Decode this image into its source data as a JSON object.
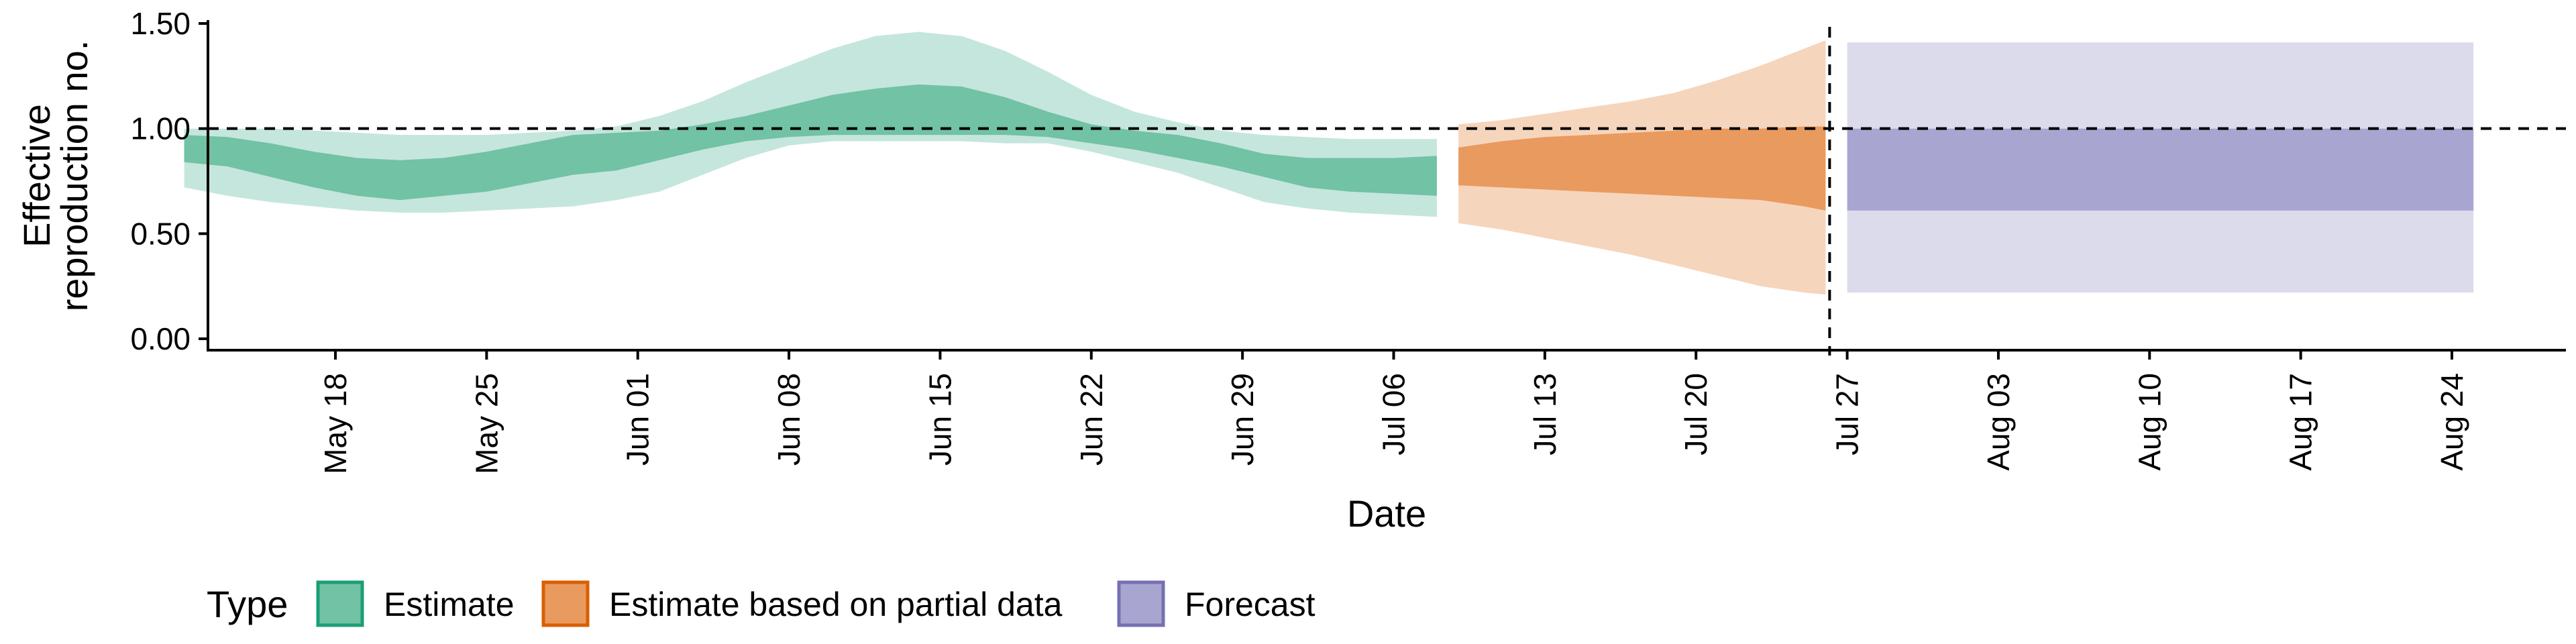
{
  "chart_data": {
    "type": "area",
    "title": "",
    "xlabel": "Date",
    "ylabel_lines": [
      "Effective",
      "reproduction no."
    ],
    "ylim": [
      0.0,
      1.5
    ],
    "y_ticks": [
      "0.00",
      "0.50",
      "1.00",
      "1.50"
    ],
    "y_tick_values": [
      0.0,
      0.5,
      1.0,
      1.5
    ],
    "x_range_days": [
      "2020-05-12",
      "2020-08-31"
    ],
    "x_ticks": [
      {
        "date": "2020-05-18",
        "label": "May 18"
      },
      {
        "date": "2020-05-25",
        "label": "May 25"
      },
      {
        "date": "2020-06-01",
        "label": "Jun 01"
      },
      {
        "date": "2020-06-08",
        "label": "Jun 08"
      },
      {
        "date": "2020-06-15",
        "label": "Jun 15"
      },
      {
        "date": "2020-06-22",
        "label": "Jun 22"
      },
      {
        "date": "2020-06-29",
        "label": "Jun 29"
      },
      {
        "date": "2020-07-06",
        "label": "Jul 06"
      },
      {
        "date": "2020-07-13",
        "label": "Jul 13"
      },
      {
        "date": "2020-07-20",
        "label": "Jul 20"
      },
      {
        "date": "2020-07-27",
        "label": "Jul 27"
      },
      {
        "date": "2020-08-03",
        "label": "Aug 03"
      },
      {
        "date": "2020-08-10",
        "label": "Aug 10"
      },
      {
        "date": "2020-08-17",
        "label": "Aug 17"
      },
      {
        "date": "2020-08-24",
        "label": "Aug 24"
      }
    ],
    "reference_hline": 1.0,
    "forecast_vline_date": "2020-07-26",
    "grid": false,
    "legend": {
      "title": "Type",
      "placement": "bottom-left",
      "entries": [
        {
          "label": "Estimate",
          "fill": "#72c2a5",
          "border": "#1b9e77"
        },
        {
          "label": "Estimate based on partial data",
          "fill": "#e99a5e",
          "border": "#d95f02"
        },
        {
          "label": "Forecast",
          "fill": "#a8a6d0",
          "border": "#7570b3"
        }
      ]
    },
    "series": [
      {
        "name": "Estimate",
        "dates": [
          "2020-05-11",
          "2020-05-13",
          "2020-05-15",
          "2020-05-17",
          "2020-05-19",
          "2020-05-21",
          "2020-05-23",
          "2020-05-25",
          "2020-05-27",
          "2020-05-29",
          "2020-05-31",
          "2020-06-02",
          "2020-06-04",
          "2020-06-06",
          "2020-06-08",
          "2020-06-10",
          "2020-06-12",
          "2020-06-14",
          "2020-06-16",
          "2020-06-18",
          "2020-06-20",
          "2020-06-22",
          "2020-06-24",
          "2020-06-26",
          "2020-06-28",
          "2020-06-30",
          "2020-07-02",
          "2020-07-04",
          "2020-07-06",
          "2020-07-08"
        ],
        "outer_lower": [
          0.72,
          0.68,
          0.65,
          0.63,
          0.61,
          0.6,
          0.6,
          0.61,
          0.62,
          0.63,
          0.66,
          0.7,
          0.78,
          0.86,
          0.92,
          0.94,
          0.94,
          0.94,
          0.94,
          0.93,
          0.93,
          0.89,
          0.84,
          0.79,
          0.72,
          0.65,
          0.62,
          0.6,
          0.59,
          0.58
        ],
        "outer_upper": [
          1.0,
          1.0,
          1.0,
          0.99,
          0.98,
          0.97,
          0.97,
          0.97,
          0.98,
          0.99,
          1.01,
          1.06,
          1.13,
          1.22,
          1.3,
          1.38,
          1.44,
          1.46,
          1.44,
          1.37,
          1.27,
          1.16,
          1.08,
          1.03,
          0.99,
          0.97,
          0.96,
          0.95,
          0.95,
          0.95
        ],
        "inner_lower": [
          0.84,
          0.82,
          0.77,
          0.72,
          0.68,
          0.66,
          0.68,
          0.7,
          0.74,
          0.78,
          0.8,
          0.85,
          0.9,
          0.94,
          0.96,
          0.97,
          0.97,
          0.97,
          0.97,
          0.97,
          0.96,
          0.93,
          0.9,
          0.86,
          0.82,
          0.77,
          0.72,
          0.7,
          0.69,
          0.68
        ],
        "inner_upper": [
          0.97,
          0.96,
          0.93,
          0.89,
          0.86,
          0.85,
          0.86,
          0.89,
          0.93,
          0.97,
          0.98,
          0.99,
          1.02,
          1.06,
          1.11,
          1.16,
          1.19,
          1.21,
          1.2,
          1.15,
          1.08,
          1.02,
          0.99,
          0.97,
          0.93,
          0.88,
          0.86,
          0.86,
          0.86,
          0.87
        ]
      },
      {
        "name": "Estimate based on partial data",
        "dates": [
          "2020-07-09",
          "2020-07-11",
          "2020-07-13",
          "2020-07-15",
          "2020-07-17",
          "2020-07-19",
          "2020-07-21",
          "2020-07-23",
          "2020-07-25",
          "2020-07-26"
        ],
        "outer_lower": [
          0.55,
          0.52,
          0.48,
          0.44,
          0.4,
          0.35,
          0.3,
          0.25,
          0.22,
          0.21
        ],
        "outer_upper": [
          1.02,
          1.04,
          1.07,
          1.1,
          1.13,
          1.17,
          1.23,
          1.3,
          1.38,
          1.42
        ],
        "inner_lower": [
          0.73,
          0.72,
          0.71,
          0.7,
          0.69,
          0.68,
          0.67,
          0.66,
          0.63,
          0.61
        ],
        "inner_upper": [
          0.91,
          0.94,
          0.96,
          0.97,
          0.98,
          0.99,
          1.0,
          1.0,
          1.01,
          1.01
        ]
      },
      {
        "name": "Forecast",
        "dates": [
          "2020-07-27",
          "2020-08-25"
        ],
        "outer_lower": [
          0.22,
          0.22
        ],
        "outer_upper": [
          1.41,
          1.41
        ],
        "inner_lower": [
          0.61,
          0.61
        ],
        "inner_upper": [
          1.0,
          1.0
        ]
      }
    ]
  }
}
